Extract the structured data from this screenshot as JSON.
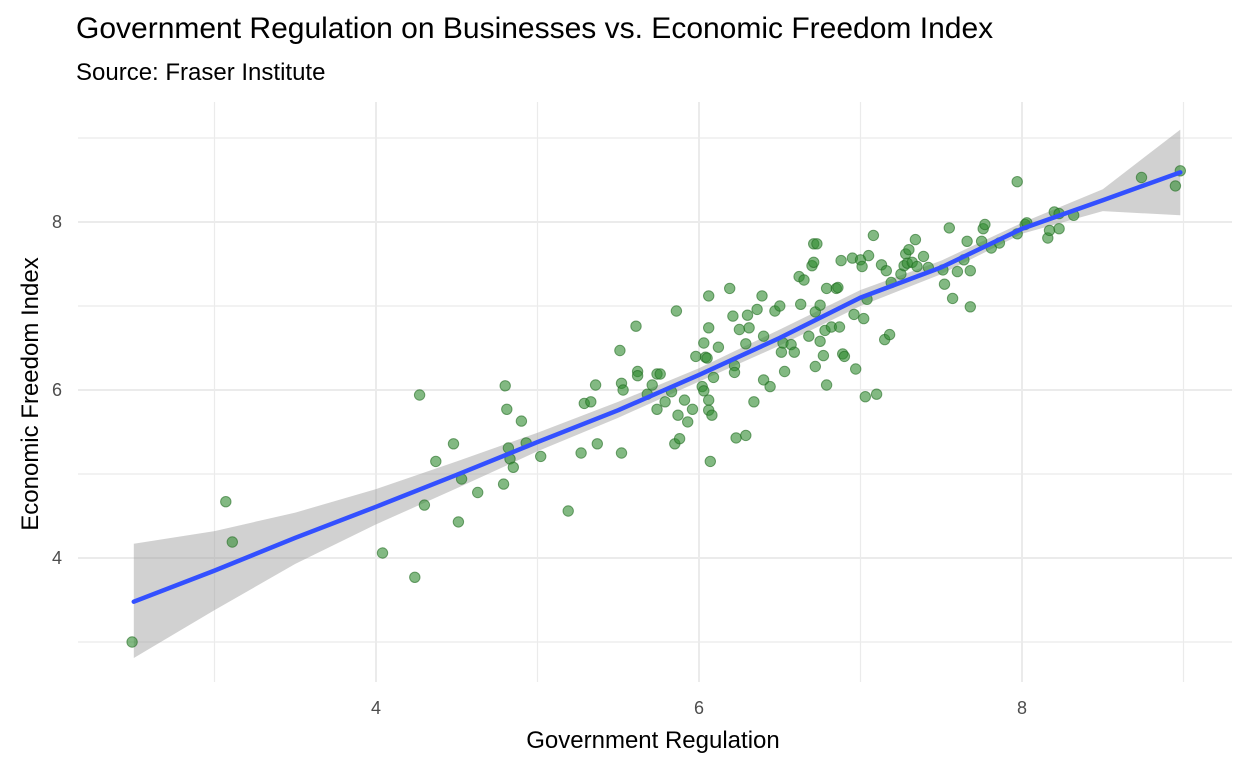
{
  "chart_data": {
    "type": "scatter",
    "title": "Government Regulation on Businesses vs. Economic Freedom Index",
    "subtitle": "Source: Fraser Institute",
    "xlabel": "Government Regulation",
    "ylabel": "Economic Freedom Index",
    "xlim": [
      2.5,
      9.0
    ],
    "ylim": [
      2.5,
      9.5
    ],
    "x_ticks": [
      4,
      6,
      8
    ],
    "y_ticks": [
      4,
      6,
      8
    ],
    "grid": true,
    "legend": "none",
    "point_color": "#2f8b2f",
    "smooth_color": "#3350ff",
    "ribbon_color": "#999999",
    "points": [
      [
        2.49,
        3.0
      ],
      [
        3.07,
        4.67
      ],
      [
        3.11,
        4.19
      ],
      [
        4.04,
        4.06
      ],
      [
        4.24,
        3.77
      ],
      [
        4.27,
        5.94
      ],
      [
        4.3,
        4.63
      ],
      [
        4.37,
        5.15
      ],
      [
        4.48,
        5.36
      ],
      [
        4.51,
        4.43
      ],
      [
        4.53,
        4.94
      ],
      [
        4.63,
        4.78
      ],
      [
        4.79,
        4.88
      ],
      [
        4.8,
        6.05
      ],
      [
        4.81,
        5.77
      ],
      [
        4.82,
        5.31
      ],
      [
        4.83,
        5.18
      ],
      [
        4.85,
        5.08
      ],
      [
        4.9,
        5.63
      ],
      [
        4.93,
        5.37
      ],
      [
        5.02,
        5.21
      ],
      [
        5.19,
        4.56
      ],
      [
        5.27,
        5.25
      ],
      [
        5.29,
        5.84
      ],
      [
        5.33,
        5.86
      ],
      [
        5.36,
        6.06
      ],
      [
        5.37,
        5.36
      ],
      [
        5.51,
        6.47
      ],
      [
        5.52,
        6.08
      ],
      [
        5.52,
        5.25
      ],
      [
        5.53,
        6.0
      ],
      [
        5.61,
        6.76
      ],
      [
        5.62,
        6.22
      ],
      [
        5.62,
        6.17
      ],
      [
        5.68,
        5.95
      ],
      [
        5.71,
        6.06
      ],
      [
        5.74,
        6.19
      ],
      [
        5.74,
        5.77
      ],
      [
        5.76,
        6.19
      ],
      [
        5.79,
        5.86
      ],
      [
        5.83,
        5.98
      ],
      [
        5.85,
        5.36
      ],
      [
        5.86,
        6.94
      ],
      [
        5.87,
        5.7
      ],
      [
        5.88,
        5.42
      ],
      [
        5.91,
        5.88
      ],
      [
        5.93,
        5.62
      ],
      [
        5.96,
        5.77
      ],
      [
        5.98,
        6.4
      ],
      [
        6.02,
        6.04
      ],
      [
        6.03,
        6.56
      ],
      [
        6.03,
        5.99
      ],
      [
        6.04,
        6.39
      ],
      [
        6.05,
        6.38
      ],
      [
        6.06,
        7.12
      ],
      [
        6.06,
        6.74
      ],
      [
        6.06,
        5.88
      ],
      [
        6.06,
        5.76
      ],
      [
        6.07,
        5.15
      ],
      [
        6.08,
        5.7
      ],
      [
        6.09,
        6.15
      ],
      [
        6.12,
        6.51
      ],
      [
        6.19,
        7.21
      ],
      [
        6.21,
        6.88
      ],
      [
        6.22,
        6.29
      ],
      [
        6.22,
        6.21
      ],
      [
        6.23,
        5.43
      ],
      [
        6.25,
        6.72
      ],
      [
        6.29,
        5.46
      ],
      [
        6.29,
        6.55
      ],
      [
        6.3,
        6.89
      ],
      [
        6.31,
        6.74
      ],
      [
        6.34,
        5.86
      ],
      [
        6.36,
        6.96
      ],
      [
        6.39,
        7.12
      ],
      [
        6.4,
        6.12
      ],
      [
        6.4,
        6.64
      ],
      [
        6.44,
        6.04
      ],
      [
        6.47,
        6.94
      ],
      [
        6.5,
        7.0
      ],
      [
        6.51,
        6.45
      ],
      [
        6.52,
        6.56
      ],
      [
        6.53,
        6.22
      ],
      [
        6.57,
        6.54
      ],
      [
        6.59,
        6.45
      ],
      [
        6.62,
        7.35
      ],
      [
        6.63,
        7.02
      ],
      [
        6.65,
        7.31
      ],
      [
        6.68,
        6.64
      ],
      [
        6.7,
        7.48
      ],
      [
        6.71,
        7.52
      ],
      [
        6.71,
        7.74
      ],
      [
        6.72,
        6.93
      ],
      [
        6.72,
        6.28
      ],
      [
        6.73,
        7.74
      ],
      [
        6.75,
        7.01
      ],
      [
        6.75,
        6.58
      ],
      [
        6.77,
        6.41
      ],
      [
        6.78,
        6.71
      ],
      [
        6.79,
        6.06
      ],
      [
        6.79,
        7.21
      ],
      [
        6.82,
        6.75
      ],
      [
        6.85,
        7.21
      ],
      [
        6.86,
        7.22
      ],
      [
        6.87,
        6.75
      ],
      [
        6.88,
        7.54
      ],
      [
        6.89,
        6.43
      ],
      [
        6.9,
        6.4
      ],
      [
        6.95,
        7.57
      ],
      [
        6.96,
        6.9
      ],
      [
        6.97,
        6.25
      ],
      [
        7.0,
        7.55
      ],
      [
        7.01,
        7.47
      ],
      [
        7.02,
        6.85
      ],
      [
        7.03,
        5.92
      ],
      [
        7.04,
        7.08
      ],
      [
        7.05,
        7.6
      ],
      [
        7.08,
        7.84
      ],
      [
        7.1,
        5.95
      ],
      [
        7.13,
        7.49
      ],
      [
        7.15,
        6.6
      ],
      [
        7.16,
        7.42
      ],
      [
        7.18,
        6.66
      ],
      [
        7.19,
        7.28
      ],
      [
        7.25,
        7.38
      ],
      [
        7.27,
        7.48
      ],
      [
        7.28,
        7.62
      ],
      [
        7.29,
        7.51
      ],
      [
        7.3,
        7.67
      ],
      [
        7.32,
        7.52
      ],
      [
        7.34,
        7.79
      ],
      [
        7.35,
        7.47
      ],
      [
        7.39,
        7.59
      ],
      [
        7.42,
        7.46
      ],
      [
        7.51,
        7.43
      ],
      [
        7.52,
        7.26
      ],
      [
        7.55,
        7.93
      ],
      [
        7.57,
        7.09
      ],
      [
        7.6,
        7.41
      ],
      [
        7.64,
        7.55
      ],
      [
        7.66,
        7.77
      ],
      [
        7.68,
        6.99
      ],
      [
        7.68,
        7.42
      ],
      [
        7.75,
        7.77
      ],
      [
        7.76,
        7.92
      ],
      [
        7.77,
        7.97
      ],
      [
        7.81,
        7.69
      ],
      [
        7.86,
        7.75
      ],
      [
        7.97,
        8.48
      ],
      [
        7.97,
        7.86
      ],
      [
        8.02,
        7.97
      ],
      [
        8.03,
        7.99
      ],
      [
        8.16,
        7.81
      ],
      [
        8.17,
        7.9
      ],
      [
        8.2,
        8.12
      ],
      [
        8.23,
        7.92
      ],
      [
        8.23,
        8.1
      ],
      [
        8.32,
        8.08
      ],
      [
        8.74,
        8.53
      ],
      [
        8.95,
        8.43
      ],
      [
        8.98,
        8.61
      ]
    ],
    "smooth_fit": [
      [
        2.5,
        3.48
      ],
      [
        3.0,
        3.85
      ],
      [
        3.5,
        4.24
      ],
      [
        4.0,
        4.61
      ],
      [
        4.5,
        4.99
      ],
      [
        5.0,
        5.38
      ],
      [
        5.5,
        5.76
      ],
      [
        6.0,
        6.18
      ],
      [
        6.5,
        6.62
      ],
      [
        7.0,
        7.1
      ],
      [
        7.5,
        7.46
      ],
      [
        8.0,
        7.92
      ],
      [
        8.5,
        8.26
      ],
      [
        8.98,
        8.59
      ]
    ],
    "smooth_ci_upper": [
      [
        2.5,
        4.17
      ],
      [
        3.0,
        4.32
      ],
      [
        3.5,
        4.54
      ],
      [
        4.0,
        4.82
      ],
      [
        4.5,
        5.15
      ],
      [
        5.0,
        5.49
      ],
      [
        5.5,
        5.86
      ],
      [
        6.0,
        6.26
      ],
      [
        6.5,
        6.72
      ],
      [
        7.0,
        7.19
      ],
      [
        7.5,
        7.54
      ],
      [
        8.0,
        7.99
      ],
      [
        8.5,
        8.39
      ],
      [
        8.98,
        9.1
      ]
    ],
    "smooth_ci_lower": [
      [
        2.5,
        2.81
      ],
      [
        3.0,
        3.38
      ],
      [
        3.5,
        3.93
      ],
      [
        4.0,
        4.4
      ],
      [
        4.5,
        4.83
      ],
      [
        5.0,
        5.27
      ],
      [
        5.5,
        5.67
      ],
      [
        6.0,
        6.1
      ],
      [
        6.5,
        6.53
      ],
      [
        7.0,
        7.0
      ],
      [
        7.5,
        7.38
      ],
      [
        8.0,
        7.86
      ],
      [
        8.5,
        8.13
      ],
      [
        8.98,
        8.08
      ]
    ]
  }
}
